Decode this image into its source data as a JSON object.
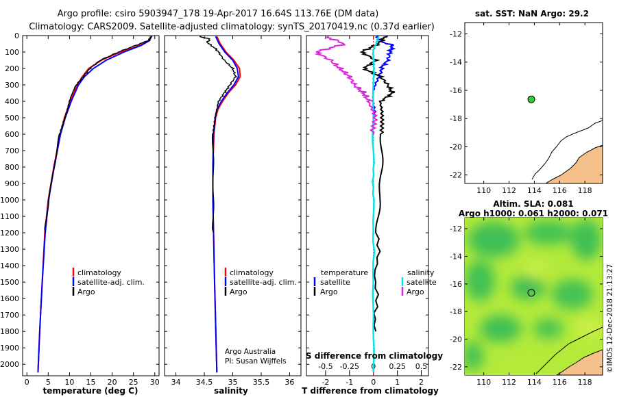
{
  "title": {
    "line1": "Argo profile: csiro 5903947_178 19-Apr-2017 16.64S 113.76E (DM data)",
    "line2": "Climatology: CARS2009. Satellite-adjusted climatology: synTS_20170419.nc (0.37d earlier)"
  },
  "depth_axis": {
    "ticks": [
      "0",
      "100",
      "200",
      "300",
      "400",
      "500",
      "600",
      "700",
      "800",
      "900",
      "1000",
      "1100",
      "1200",
      "1300",
      "1400",
      "1500",
      "1600",
      "1700",
      "1800",
      "1900",
      "2000"
    ],
    "max": 2070
  },
  "colors": {
    "climatology": "#ff0000",
    "satellite": "#0000ff",
    "argo": "#000000",
    "cyan": "#00e5e5",
    "magenta": "#e020e0"
  },
  "chart_data": [
    {
      "type": "line",
      "panel": "temperature",
      "xlabel": "temperature (deg C)",
      "xlim": [
        -1,
        31
      ],
      "x_ticks": [
        "0",
        "5",
        "10",
        "15",
        "20",
        "25",
        "30"
      ],
      "legend": [
        "climatology",
        "satellite-adj. clim.",
        "Argo"
      ],
      "series": [
        {
          "name": "climatology",
          "depth": [
            5,
            30,
            60,
            100,
            150,
            200,
            250,
            300,
            400,
            500,
            600,
            800,
            1000,
            1200,
            1500,
            1800,
            2050
          ],
          "values": [
            29.0,
            28.6,
            26.5,
            22.0,
            17.5,
            14.5,
            13.0,
            11.8,
            10.2,
            8.8,
            7.8,
            6.3,
            5.0,
            4.2,
            3.6,
            3.0,
            2.6
          ]
        },
        {
          "name": "satellite-adj. clim.",
          "depth": [
            5,
            30,
            60,
            100,
            150,
            200,
            250,
            300,
            400,
            500,
            600,
            800,
            1000,
            1200,
            1500,
            1800,
            2050
          ],
          "values": [
            29.2,
            28.8,
            26.8,
            22.8,
            18.6,
            15.6,
            13.5,
            12.1,
            10.4,
            9.0,
            7.9,
            6.4,
            5.1,
            4.3,
            3.6,
            3.0,
            2.6
          ]
        },
        {
          "name": "Argo",
          "depth": [
            5,
            30,
            60,
            100,
            150,
            200,
            250,
            300,
            400,
            500,
            600,
            800,
            1000,
            1200
          ],
          "values": [
            29.2,
            28.5,
            25.5,
            21.5,
            17.2,
            14.8,
            13.2,
            11.6,
            10.0,
            8.8,
            7.8,
            6.3,
            5.0,
            4.3
          ]
        }
      ]
    },
    {
      "type": "line",
      "panel": "salinity",
      "xlabel": "salinity",
      "xlim": [
        33.8,
        36.2
      ],
      "x_ticks": [
        "34",
        "34.5",
        "35",
        "35.5",
        "36"
      ],
      "legend": [
        "climatology",
        "satellite-adj. clim.",
        "Argo"
      ],
      "credits": [
        "Argo Australia",
        "PI: Susan Wijffels"
      ],
      "series": [
        {
          "name": "climatology",
          "depth": [
            5,
            50,
            100,
            150,
            200,
            250,
            300,
            350,
            400,
            450,
            500,
            600,
            800,
            1000,
            1500,
            2050
          ],
          "values": [
            34.72,
            34.78,
            34.88,
            35.02,
            35.12,
            35.13,
            35.05,
            34.92,
            34.82,
            34.74,
            34.7,
            34.67,
            34.65,
            34.65,
            34.68,
            34.72
          ]
        },
        {
          "name": "satellite-adj. clim.",
          "depth": [
            5,
            50,
            100,
            150,
            200,
            250,
            300,
            350,
            400,
            450,
            500,
            600,
            800,
            1000,
            1500,
            2050
          ],
          "values": [
            34.7,
            34.76,
            34.86,
            35.0,
            35.08,
            35.1,
            35.02,
            34.9,
            34.8,
            34.72,
            34.69,
            34.66,
            34.65,
            34.65,
            34.68,
            34.72
          ]
        },
        {
          "name": "Argo",
          "depth": [
            5,
            20,
            40,
            60,
            80,
            100,
            150,
            200,
            250,
            300,
            350,
            400,
            500,
            600,
            800,
            1000,
            1200
          ],
          "values": [
            34.4,
            34.6,
            34.55,
            34.62,
            34.7,
            34.75,
            34.85,
            35.0,
            35.05,
            34.95,
            34.85,
            34.75,
            34.68,
            34.66,
            34.65,
            34.65,
            34.66
          ]
        }
      ]
    },
    {
      "type": "line",
      "panel": "difference",
      "xlabel": "T difference from climatology",
      "xlim": [
        -2.8,
        2.3
      ],
      "x_ticks": [
        "-2",
        "-1",
        "0",
        "1",
        "2"
      ],
      "s_axis_label": "S difference from climatology",
      "s_ticks": [
        "-0.5",
        "-0.25",
        "0",
        "0.25",
        "0.5"
      ],
      "legend_temperature": [
        "temperature",
        "satellite",
        "Argo"
      ],
      "legend_salinity": [
        "salinity",
        "satellite",
        "Argo"
      ],
      "series": [
        {
          "name": "temperature satellite",
          "depth": [
            5,
            40,
            60,
            100,
            150,
            200,
            300,
            400,
            500
          ],
          "values": [
            0.1,
            0.4,
            0.8,
            0.7,
            0.6,
            0.3,
            0.1,
            0.0,
            0.0
          ]
        },
        {
          "name": "temperature Argo",
          "depth": [
            5,
            50,
            100,
            150,
            200,
            250,
            300,
            350,
            400,
            500,
            600,
            800,
            1000,
            1200,
            1500,
            1800
          ],
          "values": [
            0.5,
            0.2,
            -0.5,
            0.1,
            -0.4,
            0.3,
            0.6,
            0.8,
            0.3,
            0.3,
            0.4,
            0.3,
            0.2,
            0.2,
            0.1,
            0.1
          ]
        },
        {
          "name": "salinity satellite",
          "depth": [
            5,
            100,
            200,
            300,
            500,
            700,
            1000,
            1500,
            2050
          ],
          "values": [
            0.05,
            0.0,
            0.0,
            0.0,
            0.0,
            0.0,
            0.0,
            0.0,
            0.0
          ]
        },
        {
          "name": "salinity Argo",
          "depth": [
            5,
            50,
            100,
            150,
            200,
            250,
            300,
            350,
            400,
            500,
            600
          ],
          "values": [
            -0.5,
            -0.3,
            -0.6,
            -0.45,
            -0.35,
            -0.25,
            -0.2,
            -0.1,
            -0.05,
            0.0,
            0.0
          ]
        }
      ]
    },
    {
      "type": "map",
      "panel": "sst",
      "title": "sat. SST: NaN Argo: 29.2",
      "x_ticks": [
        "110",
        "112",
        "114",
        "116",
        "118"
      ],
      "y_ticks": [
        "-12",
        "-14",
        "-16",
        "-18",
        "-20",
        "-22"
      ],
      "xlim": [
        108.5,
        119.4
      ],
      "ylim": [
        -22.6,
        -11.2
      ],
      "marker": {
        "lon": 113.76,
        "lat": -16.64
      }
    },
    {
      "type": "map",
      "panel": "sla",
      "title": "Altim. SLA: 0.081",
      "subtitle": "Argo h1000: 0.061 h2000: 0.071",
      "x_ticks": [
        "110",
        "112",
        "114",
        "116",
        "118"
      ],
      "y_ticks": [
        "-12",
        "-14",
        "-16",
        "-18",
        "-20",
        "-22"
      ],
      "xlim": [
        108.5,
        119.4
      ],
      "ylim": [
        -22.6,
        -11.2
      ],
      "marker": {
        "lon": 113.76,
        "lat": -16.64
      }
    }
  ],
  "footer": {
    "stamp": "©IMOS 12-Dec-2018 21:13:27"
  }
}
